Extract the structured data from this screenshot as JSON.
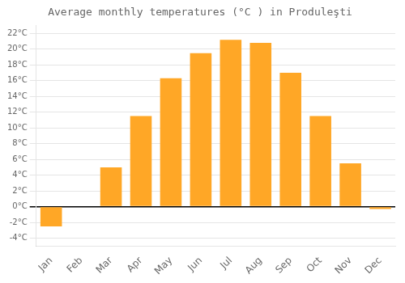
{
  "chart_data": {
    "type": "bar",
    "title": "Average monthly temperatures (°C ) in Produleşti",
    "categories": [
      "Jan",
      "Feb",
      "Mar",
      "Apr",
      "May",
      "Jun",
      "Jul",
      "Aug",
      "Sep",
      "Oct",
      "Nov",
      "Dec"
    ],
    "values": [
      -2.5,
      0,
      5.0,
      11.5,
      16.3,
      19.5,
      21.2,
      20.8,
      17.0,
      11.5,
      5.5,
      -0.3
    ],
    "color": "#FFA726",
    "ylim": [
      -5,
      23
    ],
    "yticks": [
      {
        "value": -4,
        "label": "-4°C"
      },
      {
        "value": -2,
        "label": "-2°C"
      },
      {
        "value": 0,
        "label": "0°C"
      },
      {
        "value": 2,
        "label": "2°C"
      },
      {
        "value": 4,
        "label": "4°C"
      },
      {
        "value": 6,
        "label": "6°C"
      },
      {
        "value": 8,
        "label": "8°C"
      },
      {
        "value": 10,
        "label": "10°C"
      },
      {
        "value": 12,
        "label": "12°C"
      },
      {
        "value": 14,
        "label": "14°C"
      },
      {
        "value": 16,
        "label": "16°C"
      },
      {
        "value": 18,
        "label": "18°C"
      },
      {
        "value": 20,
        "label": "20°C"
      },
      {
        "value": 22,
        "label": "22°C"
      }
    ],
    "grid": true
  }
}
